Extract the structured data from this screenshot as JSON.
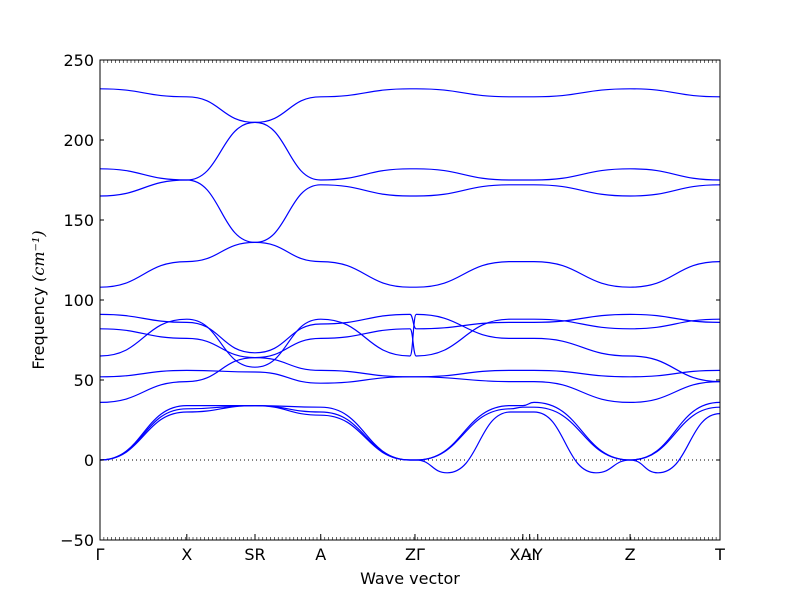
{
  "chart_data": {
    "type": "line",
    "title": "",
    "xlabel": "Wave vector",
    "ylabel": "Frequency ",
    "ylabel_unit": "(cm⁻¹)",
    "ylim": [
      -50,
      250
    ],
    "yticks": [
      -50,
      0,
      50,
      100,
      150,
      200,
      250
    ],
    "xlim": [
      0,
      1.0
    ],
    "xticks": [
      {
        "pos": 0.0,
        "label": "Γ"
      },
      {
        "pos": 0.14,
        "label": "X"
      },
      {
        "pos": 0.25,
        "label": "SR"
      },
      {
        "pos": 0.356,
        "label": "A"
      },
      {
        "pos": 0.508,
        "label": "ZΓ"
      },
      {
        "pos": 0.682,
        "label": "XAI"
      },
      {
        "pos": 0.693,
        "label": "₁"
      },
      {
        "pos": 0.706,
        "label": "Y"
      },
      {
        "pos": 0.855,
        "label": "Z"
      },
      {
        "pos": 1.0,
        "label": "T"
      }
    ],
    "zero_line": true,
    "line_color": "#0000ff",
    "series": [
      {
        "x": [
          0,
          0.14,
          0.25,
          0.356,
          0.5,
          0.51,
          0.662,
          0.682,
          0.7,
          0.855,
          1.0
        ],
        "y": [
          232,
          227,
          211,
          227,
          232,
          232,
          227,
          227,
          227,
          232,
          227
        ]
      },
      {
        "x": [
          0,
          0.14,
          0.25,
          0.356,
          0.5,
          0.51,
          0.662,
          0.682,
          0.7,
          0.855,
          1.0
        ],
        "y": [
          182,
          175,
          211,
          175,
          182,
          182,
          175,
          175,
          175,
          182,
          175
        ]
      },
      {
        "x": [
          0,
          0.14,
          0.25,
          0.356,
          0.5,
          0.51,
          0.662,
          0.682,
          0.7,
          0.855,
          1.0
        ],
        "y": [
          165,
          175,
          136,
          172,
          165,
          165,
          172,
          172,
          172,
          165,
          172
        ]
      },
      {
        "x": [
          0,
          0.14,
          0.25,
          0.356,
          0.5,
          0.51,
          0.662,
          0.682,
          0.7,
          0.855,
          1.0
        ],
        "y": [
          108,
          124,
          136,
          124,
          108,
          108,
          124,
          124,
          124,
          108,
          124
        ]
      },
      {
        "x": [
          0,
          0.14,
          0.25,
          0.356,
          0.5,
          0.51,
          0.662,
          0.682,
          0.7,
          0.855,
          1.0
        ],
        "y": [
          91,
          86,
          67,
          85,
          91,
          82,
          86,
          86,
          86,
          91,
          86
        ]
      },
      {
        "x": [
          0,
          0.14,
          0.25,
          0.356,
          0.5,
          0.51,
          0.662,
          0.682,
          0.7,
          0.855,
          1.0
        ],
        "y": [
          82,
          76,
          64,
          76,
          82,
          65,
          88,
          88,
          88,
          82,
          88
        ]
      },
      {
        "x": [
          0,
          0.14,
          0.25,
          0.356,
          0.5,
          0.51,
          0.662,
          0.682,
          0.7,
          0.855,
          1.0
        ],
        "y": [
          65,
          88,
          58,
          88,
          65,
          91,
          76,
          76,
          76,
          65,
          49
        ]
      },
      {
        "x": [
          0,
          0.14,
          0.25,
          0.356,
          0.5,
          0.51,
          0.662,
          0.682,
          0.7,
          0.855,
          1.0
        ],
        "y": [
          52,
          56,
          55,
          48,
          52,
          52,
          56,
          56,
          56,
          52,
          56
        ]
      },
      {
        "x": [
          0,
          0.14,
          0.25,
          0.356,
          0.5,
          0.51,
          0.662,
          0.682,
          0.7,
          0.855,
          1.0
        ],
        "y": [
          36,
          49,
          64,
          56,
          52,
          52,
          49,
          49,
          49,
          36,
          49
        ]
      },
      {
        "x": [
          0,
          0.14,
          0.25,
          0.356,
          0.5,
          0.51,
          0.662,
          0.682,
          0.7,
          0.855,
          1.0
        ],
        "y": [
          0,
          34,
          34,
          33,
          0,
          0,
          34,
          34,
          36,
          0,
          36
        ]
      },
      {
        "x": [
          0,
          0.14,
          0.25,
          0.356,
          0.5,
          0.51,
          0.662,
          0.682,
          0.7,
          0.855,
          1.0
        ],
        "y": [
          0,
          32,
          34,
          30,
          0,
          0,
          32,
          33,
          33,
          0,
          33
        ]
      },
      {
        "x": [
          0,
          0.14,
          0.25,
          0.356,
          0.5,
          0.51,
          0.56,
          0.662,
          0.682,
          0.7,
          0.8,
          0.855,
          0.9,
          1.0
        ],
        "y": [
          0,
          30,
          34,
          28,
          0,
          0,
          -8,
          30,
          30,
          30,
          -8,
          0,
          -8,
          29
        ]
      }
    ]
  }
}
